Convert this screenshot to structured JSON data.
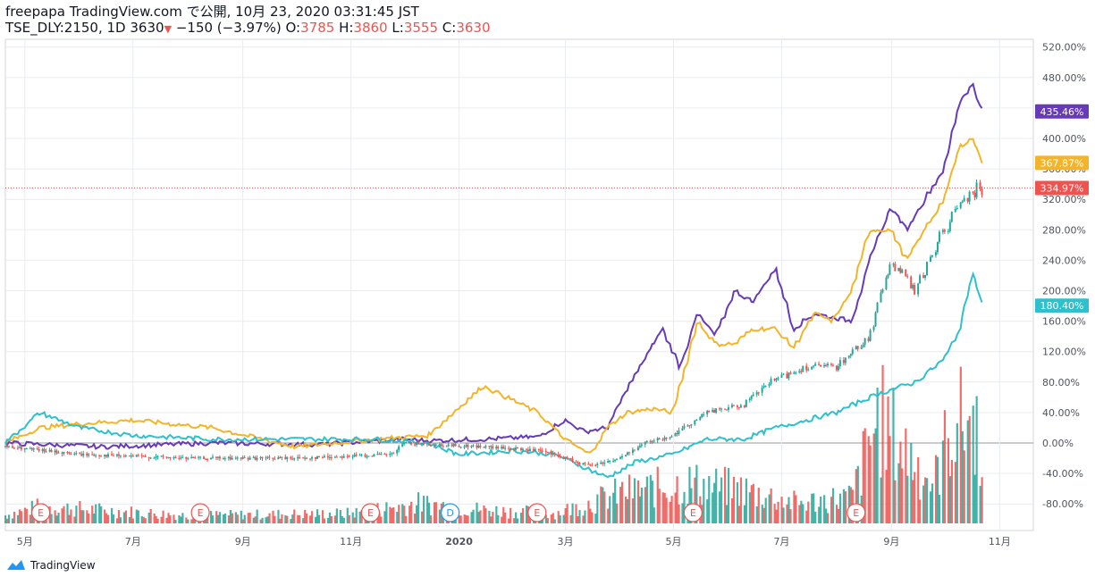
{
  "header": {
    "publisher": "freepapa TradingView.com で公開, 10月 23, 2020 03:31:45 JST",
    "symbol": "TSE_DLY:2150, 1D",
    "last": "3630",
    "change_arrow": "▼",
    "change": "−150 (−3.97%)",
    "o_label": "O:",
    "o_value": "3785",
    "h_label": "H:",
    "h_value": "3860",
    "l_label": "L:",
    "l_value": "3555",
    "c_label": "C:",
    "c_value": "3630"
  },
  "footer": {
    "brand": "TradingView"
  },
  "colors": {
    "purple": "#673ab7",
    "yellow": "#f4b42a",
    "cyan": "#2ec0cc",
    "up": "#26a69a",
    "down": "#ef5350",
    "grid": "#e9ecef",
    "axis_text": "#50535e"
  },
  "chart_data": {
    "type": "line",
    "title": "",
    "y_scale": "percent",
    "ylim": [
      -120,
      530
    ],
    "y_ticks": [
      "520.00%",
      "480.00%",
      "440.00%",
      "400.00%",
      "360.00%",
      "320.00%",
      "280.00%",
      "240.00%",
      "200.00%",
      "160.00%",
      "120.00%",
      "80.00%",
      "40.00%",
      "0.00%",
      "-40.00%",
      "-80.00%"
    ],
    "x_ticks": [
      "5月",
      "7月",
      "9月",
      "11月",
      "2020",
      "3月",
      "5月",
      "7月",
      "9月",
      "11月"
    ],
    "x_range": [
      "2019-04-20",
      "2020-11-20"
    ],
    "series": [
      {
        "color": "#673ab7",
        "last_label": "435.46%",
        "last": 435.46,
        "points": [
          [
            "2019-04-20",
            0
          ],
          [
            "2019-06-15",
            -5
          ],
          [
            "2019-08-15",
            0
          ],
          [
            "2019-10-15",
            -2
          ],
          [
            "2019-12-01",
            5
          ],
          [
            "2019-12-15",
            3
          ],
          [
            "2020-01-15",
            5
          ],
          [
            "2020-02-15",
            8
          ],
          [
            "2020-03-01",
            30
          ],
          [
            "2020-03-12",
            15
          ],
          [
            "2020-03-25",
            20
          ],
          [
            "2020-04-05",
            70
          ],
          [
            "2020-04-15",
            110
          ],
          [
            "2020-04-25",
            150
          ],
          [
            "2020-05-05",
            100
          ],
          [
            "2020-05-15",
            170
          ],
          [
            "2020-05-25",
            140
          ],
          [
            "2020-06-05",
            200
          ],
          [
            "2020-06-15",
            185
          ],
          [
            "2020-06-28",
            230
          ],
          [
            "2020-07-08",
            150
          ],
          [
            "2020-07-20",
            170
          ],
          [
            "2020-07-30",
            165
          ],
          [
            "2020-08-10",
            160
          ],
          [
            "2020-08-20",
            240
          ],
          [
            "2020-09-01",
            310
          ],
          [
            "2020-09-10",
            280
          ],
          [
            "2020-09-20",
            320
          ],
          [
            "2020-10-01",
            360
          ],
          [
            "2020-10-10",
            450
          ],
          [
            "2020-10-17",
            470
          ],
          [
            "2020-10-23",
            435.46
          ]
        ]
      },
      {
        "color": "#f4b42a",
        "last_label": "367.87%",
        "last": 367.87,
        "points": [
          [
            "2019-04-20",
            0
          ],
          [
            "2019-05-10",
            20
          ],
          [
            "2019-06-01",
            25
          ],
          [
            "2019-07-01",
            30
          ],
          [
            "2019-08-15",
            20
          ],
          [
            "2019-10-01",
            -5
          ],
          [
            "2019-11-15",
            5
          ],
          [
            "2019-12-15",
            10
          ],
          [
            "2020-01-15",
            75
          ],
          [
            "2020-02-15",
            40
          ],
          [
            "2020-03-01",
            5
          ],
          [
            "2020-03-15",
            -15
          ],
          [
            "2020-03-25",
            20
          ],
          [
            "2020-04-05",
            40
          ],
          [
            "2020-04-20",
            45
          ],
          [
            "2020-05-01",
            40
          ],
          [
            "2020-05-15",
            160
          ],
          [
            "2020-05-25",
            130
          ],
          [
            "2020-06-05",
            130
          ],
          [
            "2020-06-15",
            150
          ],
          [
            "2020-06-28",
            150
          ],
          [
            "2020-07-08",
            125
          ],
          [
            "2020-07-20",
            170
          ],
          [
            "2020-07-30",
            160
          ],
          [
            "2020-08-10",
            200
          ],
          [
            "2020-08-20",
            280
          ],
          [
            "2020-09-01",
            280
          ],
          [
            "2020-09-10",
            240
          ],
          [
            "2020-09-20",
            280
          ],
          [
            "2020-10-01",
            320
          ],
          [
            "2020-10-10",
            390
          ],
          [
            "2020-10-17",
            400
          ],
          [
            "2020-10-23",
            367.87
          ]
        ]
      },
      {
        "color": "#2ec0cc",
        "last_label": "180.40%",
        "last": 180.4,
        "points": [
          [
            "2019-04-20",
            0
          ],
          [
            "2019-05-10",
            40
          ],
          [
            "2019-06-01",
            20
          ],
          [
            "2019-07-01",
            10
          ],
          [
            "2019-08-15",
            5
          ],
          [
            "2019-10-01",
            5
          ],
          [
            "2019-11-15",
            5
          ],
          [
            "2019-12-15",
            0
          ],
          [
            "2020-01-01",
            -15
          ],
          [
            "2020-02-01",
            -10
          ],
          [
            "2020-02-25",
            -15
          ],
          [
            "2020-03-10",
            -30
          ],
          [
            "2020-03-25",
            -45
          ],
          [
            "2020-04-10",
            -25
          ],
          [
            "2020-05-01",
            -15
          ],
          [
            "2020-05-20",
            5
          ],
          [
            "2020-06-10",
            5
          ],
          [
            "2020-06-28",
            20
          ],
          [
            "2020-07-15",
            30
          ],
          [
            "2020-08-01",
            40
          ],
          [
            "2020-08-20",
            60
          ],
          [
            "2020-09-01",
            70
          ],
          [
            "2020-09-15",
            80
          ],
          [
            "2020-10-01",
            110
          ],
          [
            "2020-10-10",
            150
          ],
          [
            "2020-10-17",
            225
          ],
          [
            "2020-10-23",
            180.4
          ]
        ]
      },
      {
        "type": "candlestick",
        "color_up": "#26a69a",
        "color_down": "#ef5350",
        "last_label": "334.97%",
        "last": 334.97,
        "points": [
          [
            "2019-04-20",
            -5
          ],
          [
            "2019-06-01",
            -15
          ],
          [
            "2019-08-01",
            -20
          ],
          [
            "2019-10-01",
            -20
          ],
          [
            "2019-11-25",
            -15
          ],
          [
            "2019-12-01",
            0
          ],
          [
            "2020-01-15",
            -5
          ],
          [
            "2020-02-15",
            -10
          ],
          [
            "2020-03-01",
            -20
          ],
          [
            "2020-03-15",
            -30
          ],
          [
            "2020-04-01",
            -20
          ],
          [
            "2020-04-15",
            0
          ],
          [
            "2020-05-01",
            10
          ],
          [
            "2020-05-20",
            40
          ],
          [
            "2020-06-10",
            50
          ],
          [
            "2020-06-25",
            80
          ],
          [
            "2020-07-15",
            100
          ],
          [
            "2020-08-01",
            100
          ],
          [
            "2020-08-20",
            140
          ],
          [
            "2020-09-01",
            240
          ],
          [
            "2020-09-15",
            200
          ],
          [
            "2020-10-01",
            280
          ],
          [
            "2020-10-15",
            330
          ],
          [
            "2020-10-23",
            334.97
          ]
        ]
      }
    ],
    "volume_pattern": [
      [
        "2019-04-20",
        12
      ],
      [
        "2019-05-10",
        25
      ],
      [
        "2019-08-01",
        12
      ],
      [
        "2019-11-01",
        15
      ],
      [
        "2019-12-10",
        30
      ],
      [
        "2020-01-15",
        20
      ],
      [
        "2020-02-25",
        15
      ],
      [
        "2020-04-01",
        45
      ],
      [
        "2020-05-10",
        60
      ],
      [
        "2020-06-10",
        50
      ],
      [
        "2020-07-10",
        30
      ],
      [
        "2020-08-10",
        40
      ],
      [
        "2020-08-25",
        160
      ],
      [
        "2020-09-05",
        120
      ],
      [
        "2020-09-25",
        60
      ],
      [
        "2020-10-05",
        140
      ],
      [
        "2020-10-15",
        160
      ],
      [
        "2020-10-23",
        120
      ]
    ],
    "event_markers": [
      {
        "date": "2019-05-10",
        "label": "E"
      },
      {
        "date": "2019-08-08",
        "label": "E"
      },
      {
        "date": "2019-11-12",
        "label": "E"
      },
      {
        "date": "2019-12-27",
        "label": "D"
      },
      {
        "date": "2020-02-14",
        "label": "E"
      },
      {
        "date": "2020-05-12",
        "label": "E"
      },
      {
        "date": "2020-08-12",
        "label": "E"
      }
    ]
  }
}
